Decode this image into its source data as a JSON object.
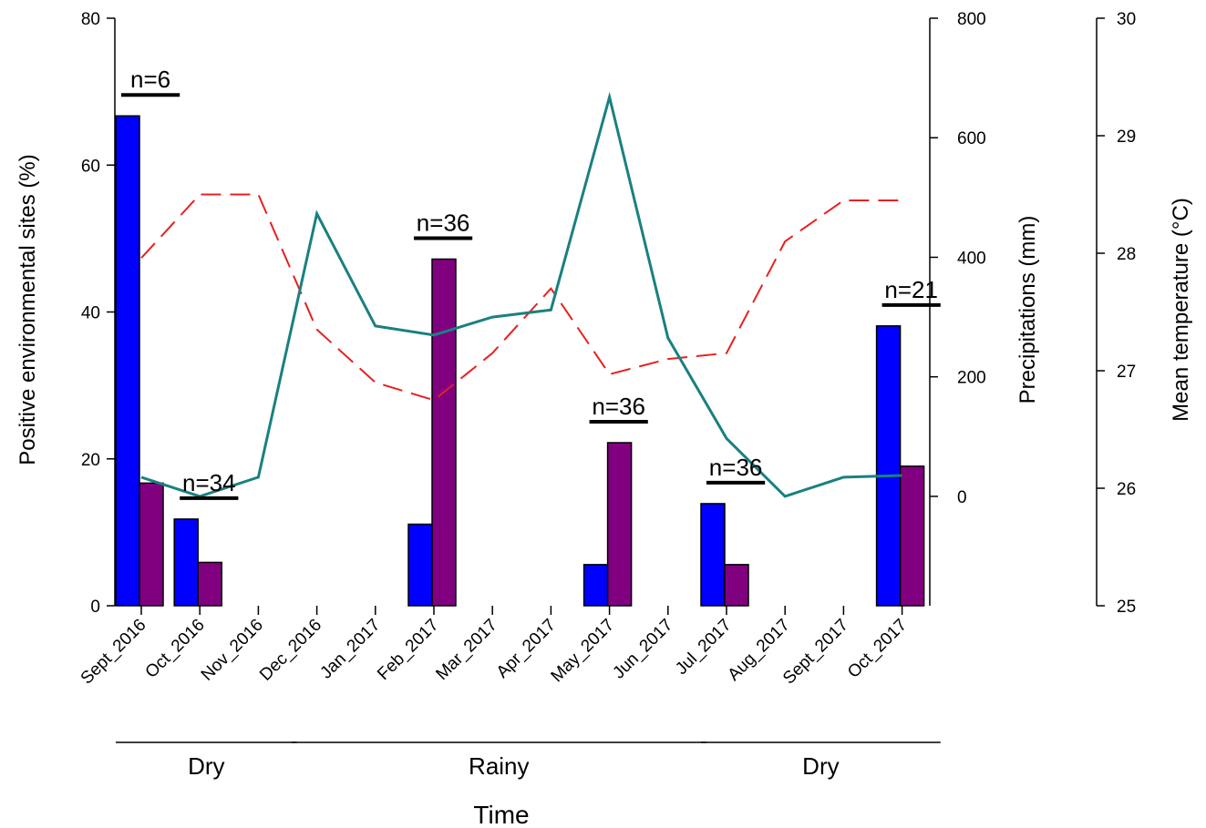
{
  "chart_data": {
    "type": "bar",
    "categories": [
      "Sept_2016",
      "Oct_2016",
      "Nov_2016",
      "Dec_2016",
      "Jan_2017",
      "Feb_2017",
      "Mar_2017",
      "Apr_2017",
      "May_2017",
      "Jun_2017",
      "Jul_2017",
      "Aug_2017",
      "Sept_2017",
      "Oct_2017"
    ],
    "xlabel": "Time",
    "ylabel": "Positive environmental sites (%)",
    "ylim": [
      0,
      80
    ],
    "yticks": [
      "0",
      "20",
      "40",
      "60",
      "80"
    ],
    "bar_series": [
      {
        "color": "#0000ff",
        "values": [
          66.7,
          11.8,
          0,
          0,
          0,
          11.1,
          0,
          0,
          5.6,
          0,
          13.9,
          0,
          0,
          38.1
        ]
      },
      {
        "color": "#800080",
        "values": [
          16.7,
          5.9,
          0,
          0,
          0,
          47.2,
          0,
          0,
          22.2,
          0,
          5.6,
          0,
          0,
          19.0
        ]
      }
    ],
    "precipitation": {
      "axis_label": "Precipitations (mm)",
      "ylim": [
        -183,
        800
      ],
      "yticks": [
        "0",
        "200",
        "400",
        "600",
        "800"
      ],
      "color": "#1a8080",
      "style": "solid",
      "values": [
        32,
        0,
        32,
        473,
        285,
        270,
        300,
        312,
        668,
        265,
        97,
        0,
        32,
        35
      ]
    },
    "temperature": {
      "axis_label": "Mean temperature (°C)",
      "ylim": [
        25,
        30
      ],
      "yticks": [
        "25",
        "26",
        "27",
        "28",
        "29",
        "30"
      ],
      "color": "#e8201f",
      "style": "dashed",
      "values": [
        27.96,
        28.5,
        28.5,
        27.35,
        26.9,
        26.75,
        27.15,
        27.7,
        26.97,
        27.1,
        27.15,
        28.1,
        28.45,
        28.45
      ]
    },
    "sample_sizes": [
      {
        "label": "n=6",
        "start": 0,
        "end": 1
      },
      {
        "label": "n=34",
        "start": 1,
        "end": 2
      },
      {
        "label": "n=36",
        "start": 5,
        "end": 6
      },
      {
        "label": "n=36",
        "start": 8,
        "end": 9
      },
      {
        "label": "n=36",
        "start": 10,
        "end": 11
      },
      {
        "label": "n=21",
        "start": 13,
        "end": 14
      }
    ],
    "seasons": [
      {
        "label": "Dry",
        "from": 0,
        "to": 3
      },
      {
        "label": "Rainy",
        "from": 3,
        "to": 10
      },
      {
        "label": "Dry",
        "from": 10,
        "to": 14
      }
    ],
    "grid": false,
    "legend": "none"
  }
}
